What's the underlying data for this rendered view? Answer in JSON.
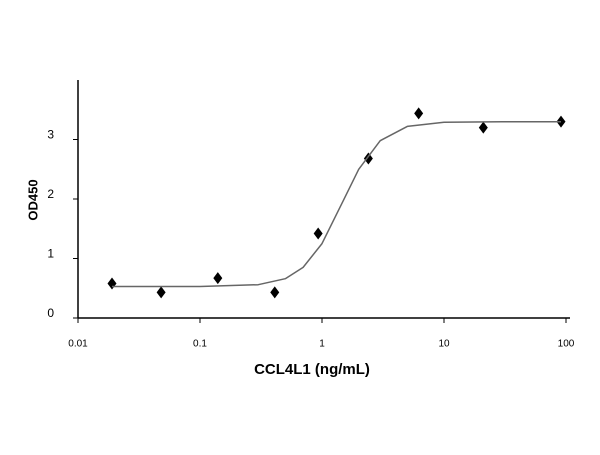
{
  "chart_data": {
    "type": "scatter",
    "x_label": "CCL4L1 (ng/mL)",
    "y_label": "OD450",
    "xscale": "log",
    "xlim": [
      0.01,
      100
    ],
    "xticks": [
      0.01,
      0.1,
      1,
      10,
      100
    ],
    "ylim": [
      0,
      4
    ],
    "yticks": [
      0,
      1,
      2,
      3
    ],
    "series": [
      {
        "name": "data",
        "color": "#000000",
        "x": [
          0.019,
          0.048,
          0.14,
          0.41,
          0.93,
          2.4,
          6.2,
          21,
          91
        ],
        "values": [
          0.58,
          0.43,
          0.67,
          0.43,
          1.42,
          2.68,
          3.44,
          3.2,
          3.3
        ]
      },
      {
        "name": "fit",
        "color": "#666666",
        "x": [
          0.019,
          0.1,
          0.3,
          0.5,
          0.7,
          1,
          1.5,
          2,
          3,
          5,
          10,
          30,
          91
        ],
        "values": [
          0.53,
          0.53,
          0.56,
          0.66,
          0.85,
          1.25,
          1.98,
          2.5,
          2.98,
          3.22,
          3.29,
          3.3,
          3.3
        ]
      }
    ]
  }
}
